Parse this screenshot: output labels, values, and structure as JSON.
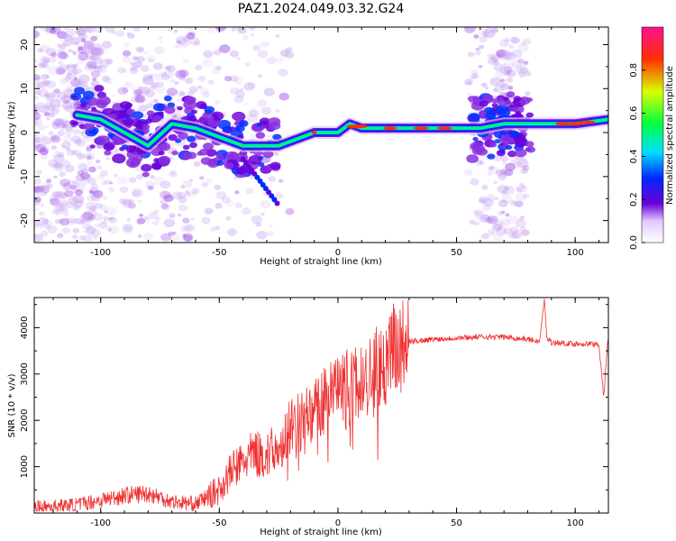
{
  "figure": {
    "title": "PAZ1.2024.049.03.32.G24"
  },
  "chart_data": [
    {
      "type": "heatmap",
      "xlabel": "Height of straight line (km)",
      "ylabel": "Frequency (Hz)",
      "xlim": [
        -128,
        114
      ],
      "ylim": [
        -25,
        24
      ],
      "x_ticks": [
        -100,
        -50,
        0,
        50,
        100
      ],
      "y_ticks": [
        -20,
        -10,
        0,
        10,
        20
      ],
      "colorbar": {
        "label": "Normalized spectral amplitude",
        "range": [
          0,
          1
        ],
        "ticks": [
          "0.0",
          "0.2",
          "0.4",
          "0.6",
          "0.8"
        ],
        "colors": [
          "#ffffff",
          "#6a00d8",
          "#0028ff",
          "#00e0ff",
          "#00ff40",
          "#d8ff00",
          "#ff3000",
          "#ff1090"
        ]
      },
      "ridge": {
        "x": [
          -110,
          -100,
          -90,
          -80,
          -70,
          -60,
          -50,
          -40,
          -30,
          -25,
          -20,
          -10,
          0,
          5,
          10,
          20,
          30,
          40,
          55,
          60,
          70,
          80,
          85,
          90,
          100,
          114
        ],
        "frequency": [
          4,
          3,
          0,
          -3,
          2,
          1,
          -1,
          -3,
          -3,
          -3,
          -2,
          0,
          0,
          2,
          1,
          1,
          1,
          1,
          1,
          1,
          2,
          2,
          2,
          2,
          2,
          3
        ]
      }
    },
    {
      "type": "line",
      "xlabel": "Height of straight line (km)",
      "ylabel": "SNR (10 * v/v)",
      "xlim": [
        -128,
        114
      ],
      "ylim": [
        0,
        4650
      ],
      "x_ticks": [
        -100,
        -50,
        0,
        50,
        100
      ],
      "y_ticks": [
        1000,
        2000,
        3000,
        4000
      ],
      "color": "#ee3030",
      "series": [
        {
          "x": [
            -128,
            -110,
            -100,
            -90,
            -80,
            -70,
            -60,
            -50,
            -45,
            -40,
            -35,
            -30,
            -25,
            -20,
            -15,
            -10,
            -5,
            0,
            5,
            10,
            15,
            20,
            25,
            30,
            40,
            50,
            60,
            70,
            80,
            85,
            87,
            88,
            90,
            100,
            110,
            112,
            114
          ],
          "values": [
            120,
            180,
            280,
            380,
            430,
            250,
            200,
            500,
            900,
            1100,
            1300,
            1200,
            1500,
            1800,
            2000,
            2200,
            2400,
            2550,
            2700,
            2800,
            3000,
            3300,
            3550,
            3700,
            3750,
            3780,
            3800,
            3800,
            3750,
            3700,
            4600,
            3800,
            3680,
            3650,
            3650,
            2500,
            3900
          ]
        }
      ]
    }
  ]
}
